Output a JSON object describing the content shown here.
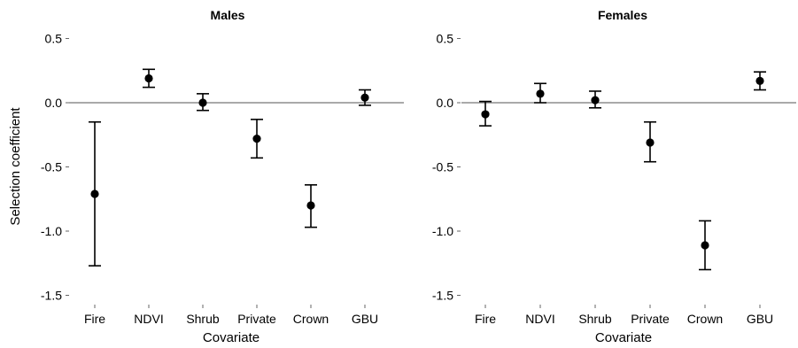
{
  "chart_data": [
    {
      "type": "scatter",
      "title": "Males",
      "xlabel": "Covariate",
      "ylabel": "Selection coefficient",
      "categories": [
        "Fire",
        "NDVI",
        "Shrub",
        "Private",
        "Crown",
        "GBU"
      ],
      "estimate": [
        -0.71,
        0.19,
        0.0,
        -0.28,
        -0.8,
        0.04
      ],
      "lower": [
        -1.27,
        0.12,
        -0.06,
        -0.43,
        -0.97,
        -0.02
      ],
      "upper": [
        -0.15,
        0.26,
        0.07,
        -0.13,
        -0.64,
        0.1
      ],
      "yticks": [
        "0.5",
        "0.0",
        "-0.5",
        "-1.0",
        "-1.5"
      ],
      "ytick_values": [
        0.5,
        0.0,
        -0.5,
        -1.0,
        -1.5
      ],
      "ylim": [
        -1.58,
        0.58
      ],
      "reference_line": 0
    },
    {
      "type": "scatter",
      "title": "Females",
      "xlabel": "Covariate",
      "ylabel": "",
      "categories": [
        "Fire",
        "NDVI",
        "Shrub",
        "Private",
        "Crown",
        "GBU"
      ],
      "estimate": [
        -0.09,
        0.07,
        0.02,
        -0.31,
        -1.11,
        0.17
      ],
      "lower": [
        -0.18,
        0.0,
        -0.04,
        -0.46,
        -1.3,
        0.1
      ],
      "upper": [
        0.01,
        0.15,
        0.09,
        -0.15,
        -0.92,
        0.24
      ],
      "yticks": [
        "0.5",
        "0.0",
        "-0.5",
        "-1.0",
        "-1.5"
      ],
      "ytick_values": [
        0.5,
        0.0,
        -0.5,
        -1.0,
        -1.5
      ],
      "ylim": [
        -1.58,
        0.58
      ],
      "reference_line": 0
    }
  ]
}
